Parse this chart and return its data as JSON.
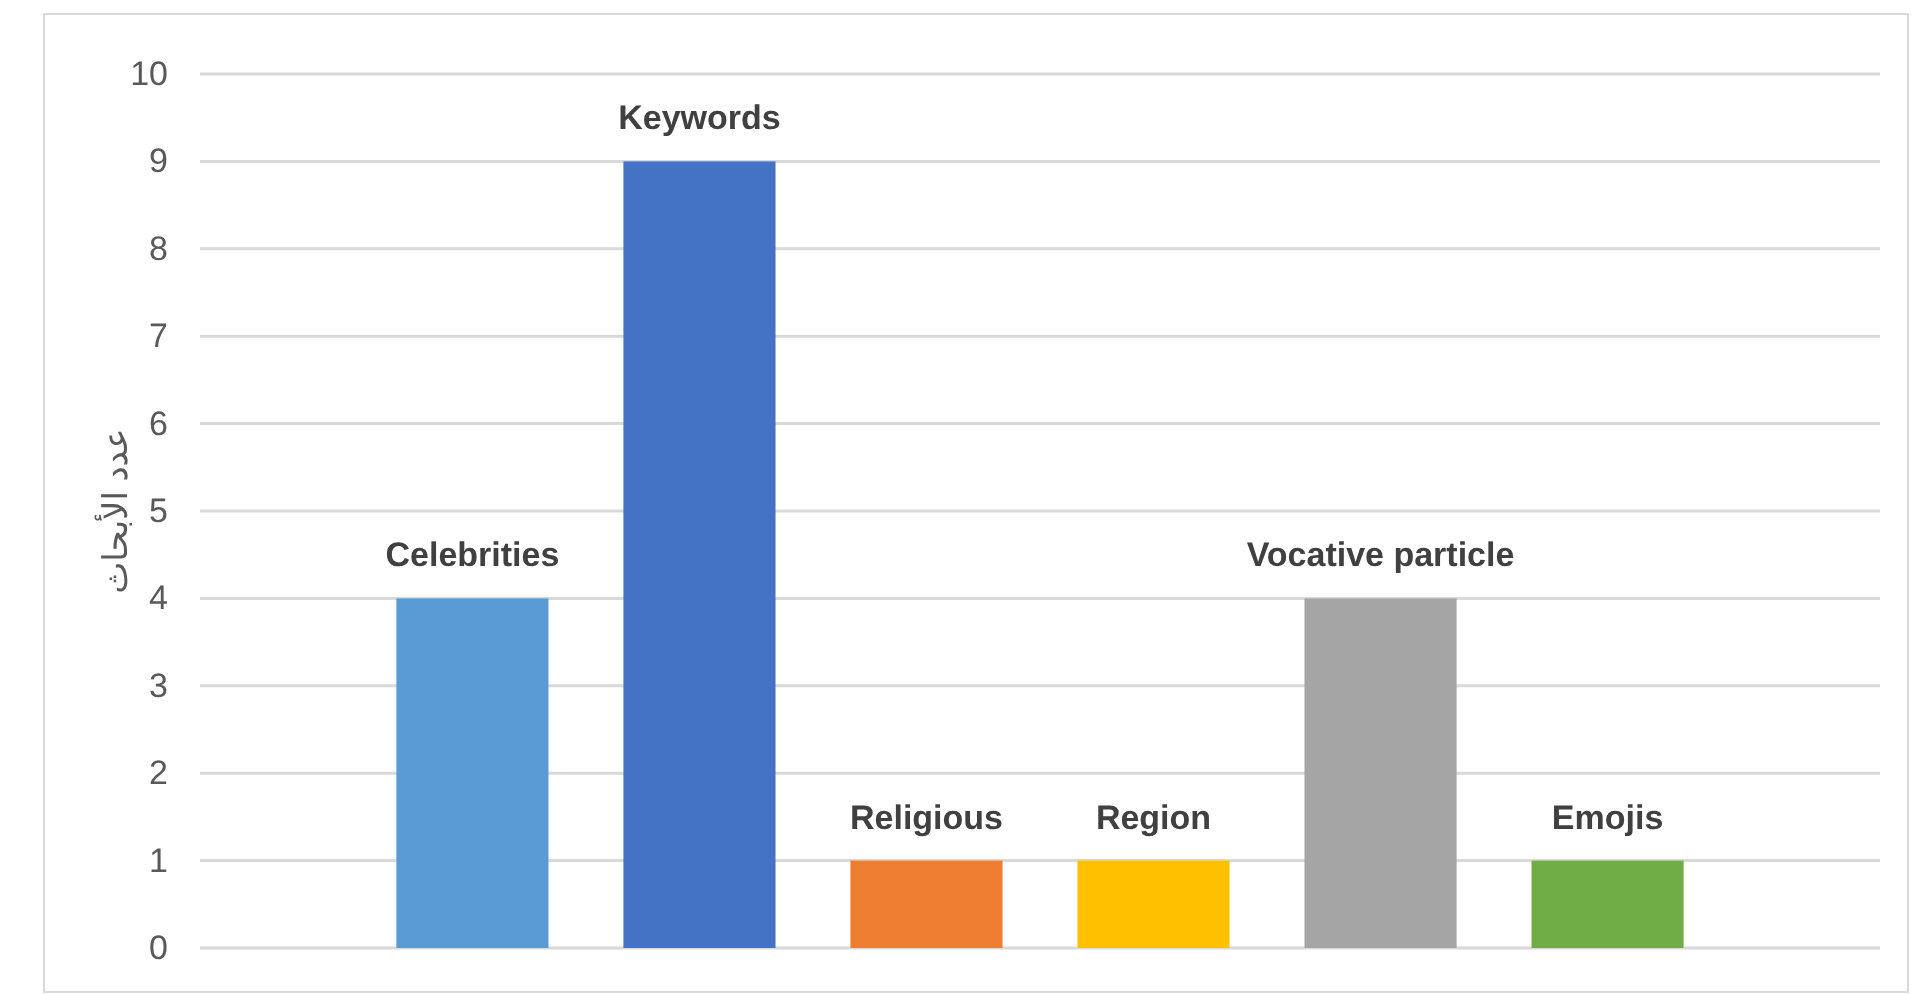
{
  "chart_data": {
    "type": "bar",
    "ylabel": "عدد الأبحاث",
    "categories": [
      "Celebrities",
      "Keywords",
      "Religious",
      "Region",
      "Vocative particle",
      "Emojis"
    ],
    "values": [
      4,
      9,
      1,
      1,
      4,
      1
    ],
    "colors": [
      "#5b9bd5",
      "#4472c4",
      "#ed7d31",
      "#ffc000",
      "#a5a5a5",
      "#70ad47"
    ],
    "ylim": [
      0,
      10
    ],
    "yticks": [
      0,
      1,
      2,
      3,
      4,
      5,
      6,
      7,
      8,
      9,
      10
    ],
    "grid": "y",
    "legend": false
  }
}
